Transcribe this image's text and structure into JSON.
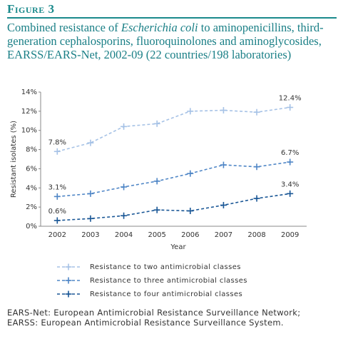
{
  "figure_label": "Figure 3",
  "chart_data": {
    "type": "line",
    "title_start": "Combined resistance of ",
    "title_italic": "Escherichia coli",
    "title_end": " to aminopenicillins, third-generation cephalosporins, fluoroquinolones and aminoglycosides, EARSS/EARS-Net, 2002-09 (22 countries/198 laboratories)",
    "x_label": "Year",
    "y_label": "Resistant isolates (%)",
    "categories": [
      "2002",
      "2003",
      "2004",
      "2005",
      "2006",
      "2007",
      "2008",
      "2009"
    ],
    "series": [
      {
        "name": "Resistance to two antimicrobial classes",
        "color": "#a6c2e6",
        "values": [
          7.8,
          8.7,
          10.4,
          10.7,
          12.0,
          12.1,
          11.9,
          12.4
        ],
        "value_labels": [
          "7.8%",
          null,
          null,
          null,
          null,
          null,
          null,
          "12.4%"
        ]
      },
      {
        "name": "Resistance to three antimicrobial classes",
        "color": "#4f86c6",
        "values": [
          3.1,
          3.4,
          4.1,
          4.7,
          5.5,
          6.4,
          6.2,
          6.7
        ],
        "value_labels": [
          "3.1%",
          null,
          null,
          null,
          null,
          null,
          null,
          "6.7%"
        ]
      },
      {
        "name": "Resistance to four antimicrobial  classes",
        "color": "#1a5796",
        "values": [
          0.6,
          0.8,
          1.1,
          1.7,
          1.6,
          2.2,
          2.9,
          3.4
        ],
        "value_labels": [
          "0.6%",
          null,
          null,
          null,
          null,
          null,
          null,
          "3.4%"
        ]
      }
    ],
    "ylim": [
      0,
      14
    ],
    "yticks": [
      {
        "value": 0,
        "label": "0%"
      },
      {
        "value": 2,
        "label": "2%"
      },
      {
        "value": 4,
        "label": "4%"
      },
      {
        "value": 6,
        "label": "6%"
      },
      {
        "value": 8,
        "label": "8%"
      },
      {
        "value": 10,
        "label": "10%"
      },
      {
        "value": 12,
        "label": "12%"
      },
      {
        "value": 14,
        "label": "14%"
      }
    ],
    "grid": false,
    "legend": "bottom",
    "line_style": "dashed"
  },
  "footnote": "EARS-Net: European Antimicrobial Resistance Surveillance Network; EARSS: European Antimicrobial Resistance Surveillance System."
}
